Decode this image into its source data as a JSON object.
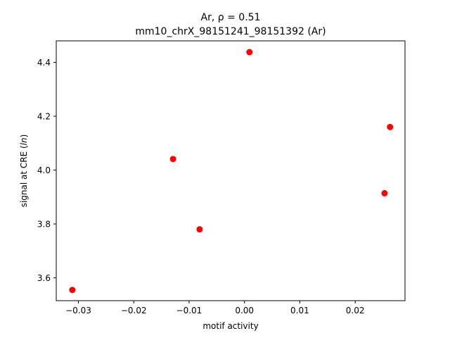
{
  "chart_data": {
    "type": "scatter",
    "title_line1": "Ar, ρ = 0.51",
    "title_line2": "mm10_chrX_98151241_98151392 (Ar)",
    "xlabel": "motif activity",
    "ylabel_prefix": "signal at CRE (",
    "ylabel_italic": "ln",
    "ylabel_suffix": ")",
    "xlim": [
      -0.034,
      0.029
    ],
    "ylim": [
      3.515,
      4.48
    ],
    "xticks": [
      -0.03,
      -0.02,
      -0.01,
      0.0,
      0.01,
      0.02
    ],
    "xtick_labels": [
      "−0.03",
      "−0.02",
      "−0.01",
      "0.00",
      "0.01",
      "0.02"
    ],
    "yticks": [
      3.6,
      3.8,
      4.0,
      4.2,
      4.4
    ],
    "ytick_labels": [
      "3.6",
      "3.8",
      "4.0",
      "4.2",
      "4.4"
    ],
    "grid": false,
    "marker_color": "#ff0000",
    "points": [
      {
        "x": -0.0311,
        "y": 3.555
      },
      {
        "x": -0.0129,
        "y": 4.041
      },
      {
        "x": -0.0081,
        "y": 3.78
      },
      {
        "x": 0.0009,
        "y": 4.438
      },
      {
        "x": 0.0253,
        "y": 3.914
      },
      {
        "x": 0.0263,
        "y": 4.16
      }
    ]
  }
}
